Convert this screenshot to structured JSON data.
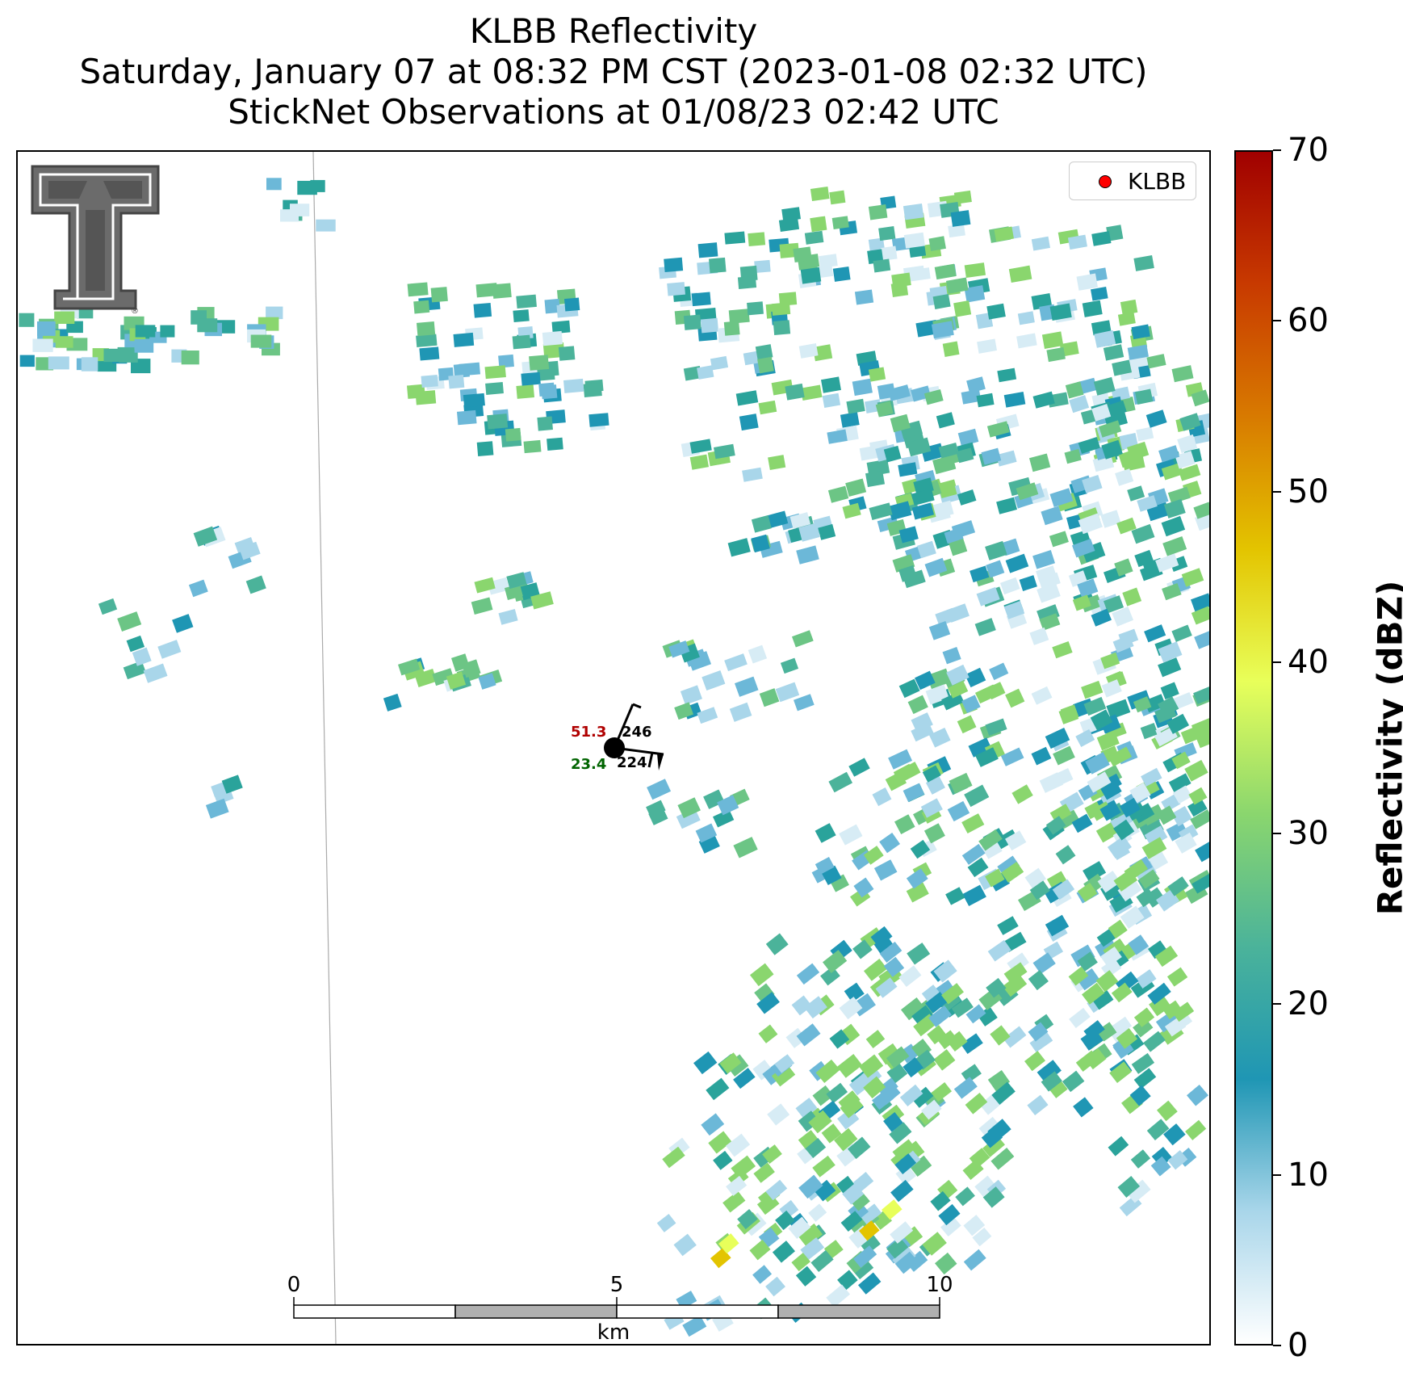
{
  "title": {
    "line1": "KLBB Reflectivity",
    "line2": "Saturday, January 07 at 08:32 PM CST (2023-01-08 02:32 UTC)",
    "line3": "StickNet Observations at 01/08/23 02:42 UTC"
  },
  "legend": {
    "label": "KLBB",
    "marker_color": "#ff0000"
  },
  "colorbar": {
    "label": "Reflectivity (dBZ)",
    "range": [
      0,
      70
    ],
    "ticks": [
      "0",
      "10",
      "20",
      "30",
      "40",
      "50",
      "60",
      "70"
    ],
    "stops": [
      "#ffffff",
      "#a9d6ea",
      "#1f96b4",
      "#4bb39a",
      "#8ad66e",
      "#e8ff5a",
      "#e3c400",
      "#d87a00",
      "#c83a00",
      "#a00000"
    ]
  },
  "logo": {
    "name": "Texas Tech Double T",
    "text": "®"
  },
  "observation": {
    "temperature": "51.3",
    "dewpoint": "23.4",
    "top_value": "246",
    "bottom_value": "224"
  },
  "scalebar": {
    "labels": [
      "0",
      "5",
      "10"
    ],
    "unit": "km"
  }
}
